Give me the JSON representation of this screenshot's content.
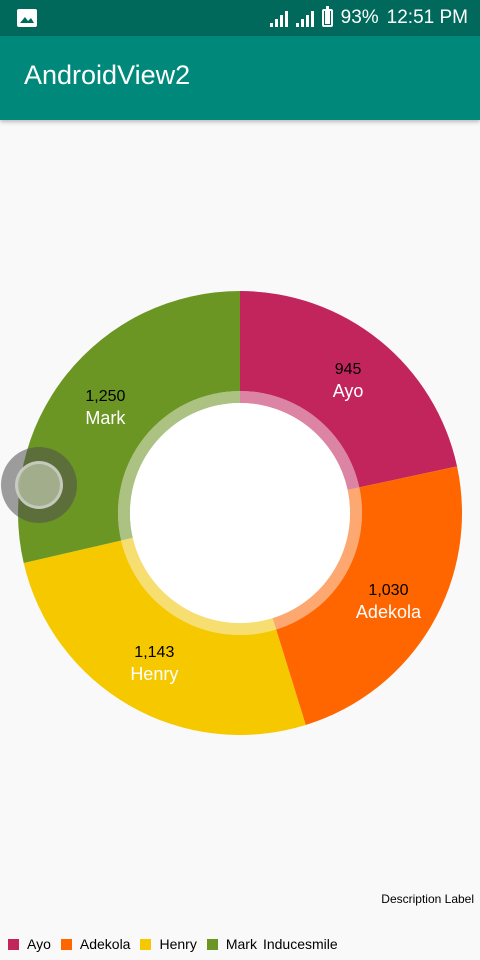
{
  "status_bar": {
    "battery_percent": "93%",
    "time": "12:51 PM",
    "battery_level": 0.93
  },
  "app_bar": {
    "title": "AndroidView2"
  },
  "chart_data": {
    "type": "pie",
    "hole": true,
    "slices": [
      {
        "label": "Ayo",
        "value": 945,
        "value_label": "945",
        "color": "#c2255c"
      },
      {
        "label": "Adekola",
        "value": 1030,
        "value_label": "1,030",
        "color": "#ff6600"
      },
      {
        "label": "Henry",
        "value": 1143,
        "value_label": "1,143",
        "color": "#f5c800"
      },
      {
        "label": "Mark",
        "value": 1250,
        "value_label": "1,250",
        "color": "#6b9623"
      }
    ],
    "description": "Description Label",
    "legend_suffix": "Inducesmile",
    "legend_position": "bottom-left"
  }
}
